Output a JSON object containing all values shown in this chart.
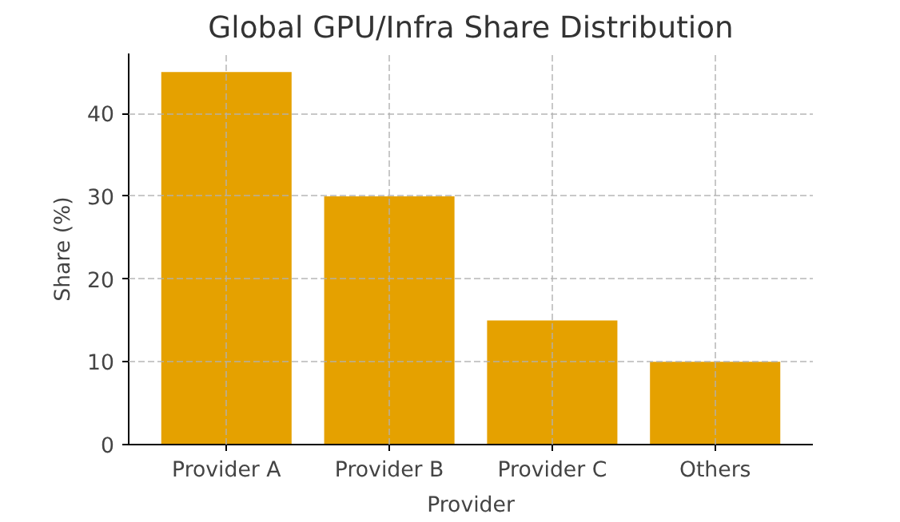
{
  "chart_data": {
    "type": "bar",
    "title": "Global GPU/Infra Share Distribution",
    "xlabel": "Provider",
    "ylabel": "Share (%)",
    "categories": [
      "Provider A",
      "Provider B",
      "Provider C",
      "Others"
    ],
    "values": [
      45,
      30,
      15,
      10
    ],
    "color": "#e5a100",
    "ylim": [
      0,
      47.25
    ],
    "yticks": [
      0,
      10,
      20,
      30,
      40
    ],
    "grid": true
  }
}
